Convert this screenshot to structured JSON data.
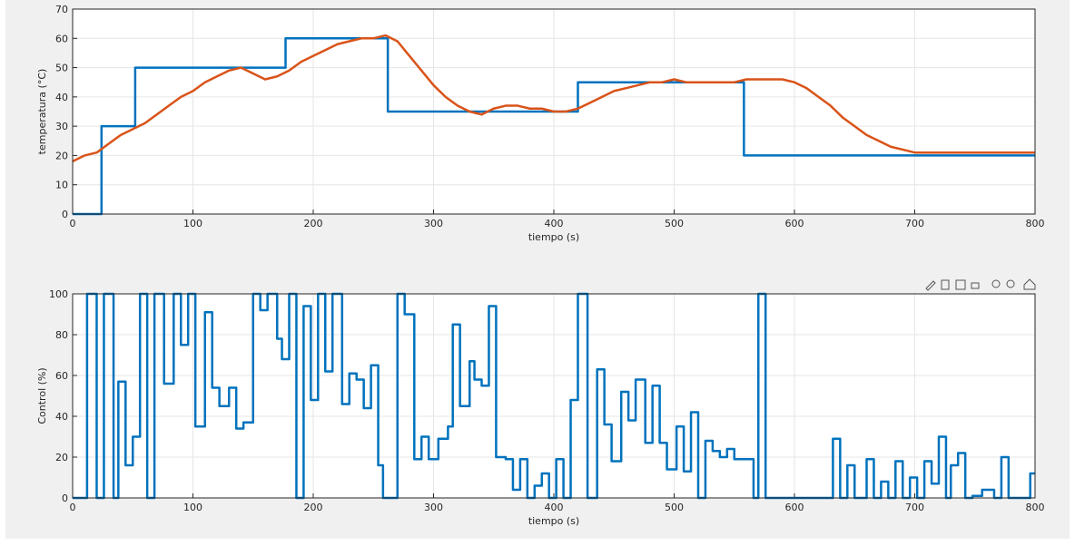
{
  "chart_data": [
    {
      "type": "line",
      "xlabel": "tiempo (s)",
      "ylabel": "temperatura (°C)",
      "xlim": [
        0,
        800
      ],
      "xticks": [
        0,
        100,
        200,
        300,
        400,
        500,
        600,
        700,
        800
      ],
      "ylim": [
        0,
        70
      ],
      "yticks": [
        0,
        10,
        20,
        30,
        40,
        50,
        60,
        70
      ],
      "grid": true,
      "series": [
        {
          "color": "#0072bd",
          "x": [
            0,
            24,
            24,
            52,
            52,
            177,
            177,
            262,
            262,
            420,
            420,
            558,
            558,
            800
          ],
          "values": [
            0,
            0,
            30,
            30,
            50,
            50,
            60,
            60,
            35,
            35,
            45,
            45,
            20,
            20
          ]
        },
        {
          "color": "#d95319",
          "x": [
            0,
            10,
            20,
            30,
            40,
            50,
            60,
            70,
            80,
            90,
            100,
            110,
            120,
            130,
            140,
            150,
            160,
            170,
            180,
            190,
            200,
            210,
            220,
            230,
            240,
            250,
            260,
            270,
            280,
            290,
            300,
            310,
            320,
            330,
            340,
            350,
            360,
            370,
            380,
            390,
            400,
            410,
            420,
            430,
            440,
            450,
            460,
            470,
            480,
            490,
            500,
            510,
            520,
            530,
            540,
            550,
            560,
            570,
            580,
            590,
            600,
            610,
            620,
            630,
            640,
            650,
            660,
            670,
            680,
            690,
            700,
            710,
            720,
            730,
            740,
            750,
            760,
            770,
            780,
            790,
            800
          ],
          "values": [
            18,
            20,
            21,
            24,
            27,
            29,
            31,
            34,
            37,
            40,
            42,
            45,
            47,
            49,
            50,
            48,
            46,
            47,
            49,
            52,
            54,
            56,
            58,
            59,
            60,
            60,
            61,
            59,
            54,
            49,
            44,
            40,
            37,
            35,
            34,
            36,
            37,
            37,
            36,
            36,
            35,
            35,
            36,
            38,
            40,
            42,
            43,
            44,
            45,
            45,
            46,
            45,
            45,
            45,
            45,
            45,
            46,
            46,
            46,
            46,
            45,
            43,
            40,
            37,
            33,
            30,
            27,
            25,
            23,
            22,
            21,
            21,
            21,
            21,
            21,
            21,
            21,
            21,
            21,
            21,
            21
          ]
        }
      ]
    },
    {
      "type": "line",
      "drawstyle": "steps-post",
      "xlabel": "tiempo (s)",
      "ylabel": "Control (%)",
      "xlim": [
        0,
        800
      ],
      "xticks": [
        0,
        100,
        200,
        300,
        400,
        500,
        600,
        700,
        800
      ],
      "ylim": [
        0,
        100
      ],
      "yticks": [
        0,
        20,
        40,
        60,
        80,
        100
      ],
      "grid": true,
      "series": [
        {
          "color": "#0072bd",
          "x": [
            0,
            12,
            20,
            26,
            34,
            38,
            44,
            50,
            56,
            62,
            68,
            76,
            84,
            90,
            96,
            102,
            110,
            116,
            122,
            130,
            136,
            142,
            150,
            156,
            162,
            170,
            174,
            180,
            186,
            192,
            198,
            204,
            210,
            216,
            224,
            230,
            236,
            242,
            248,
            254,
            258,
            264,
            270,
            276,
            284,
            290,
            296,
            304,
            312,
            316,
            322,
            330,
            334,
            340,
            346,
            352,
            360,
            366,
            372,
            378,
            384,
            390,
            396,
            402,
            408,
            414,
            420,
            428,
            436,
            442,
            448,
            456,
            462,
            468,
            476,
            482,
            488,
            494,
            502,
            508,
            514,
            520,
            526,
            532,
            538,
            544,
            550,
            566,
            570,
            576,
            632,
            638,
            644,
            650,
            660,
            666,
            672,
            678,
            684,
            690,
            696,
            702,
            708,
            714,
            720,
            726,
            730,
            736,
            742,
            748,
            756,
            766,
            772,
            778,
            796,
            800
          ],
          "values": [
            0,
            100,
            0,
            100,
            0,
            57,
            16,
            30,
            100,
            0,
            100,
            56,
            100,
            75,
            100,
            35,
            91,
            54,
            45,
            54,
            34,
            37,
            100,
            92,
            100,
            78,
            68,
            100,
            0,
            94,
            48,
            100,
            62,
            100,
            46,
            61,
            58,
            44,
            65,
            16,
            0,
            0,
            100,
            90,
            19,
            30,
            19,
            29,
            35,
            85,
            45,
            67,
            58,
            55,
            94,
            20,
            19,
            4,
            19,
            0,
            6,
            12,
            0,
            19,
            0,
            48,
            100,
            0,
            63,
            36,
            18,
            52,
            38,
            58,
            27,
            55,
            27,
            14,
            35,
            13,
            42,
            0,
            28,
            23,
            20,
            24,
            19,
            0,
            100,
            0,
            29,
            0,
            16,
            0,
            19,
            0,
            8,
            0,
            18,
            0,
            10,
            0,
            18,
            7,
            30,
            0,
            16,
            22,
            0,
            1,
            4,
            0,
            20,
            0,
            12,
            12
          ]
        }
      ]
    }
  ]
}
